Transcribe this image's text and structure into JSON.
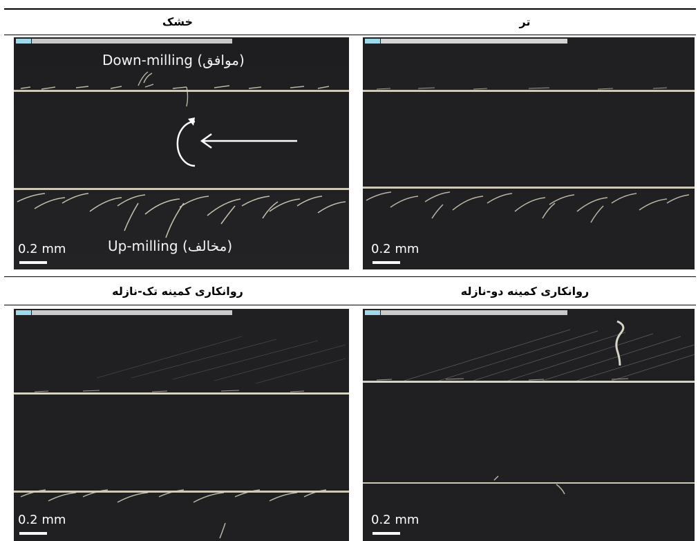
{
  "header_top": {
    "dry": "خشک",
    "wet": "تر"
  },
  "header_bottom": {
    "single_nozzle": "روانکاری کمینه تک-نازله",
    "dual_nozzle": "روانکاری کمینه دو-نازله"
  },
  "panels": {
    "dry": {
      "scale": "0.2 mm",
      "down_label": "Down-milling (موافق)",
      "up_label": "Up-milling (مخالف)",
      "feed_arrow_icon": "arrow-left-icon",
      "rotation_icon": "rotation-arc-icon"
    },
    "wet": {
      "scale": "0.2 mm"
    },
    "single_nozzle": {
      "scale": "0.2 mm"
    },
    "dual_nozzle": {
      "scale": "0.2 mm"
    }
  },
  "colors": {
    "background": "#1b1b1d",
    "edge": "#d8d6c8",
    "text": "#ffffff"
  }
}
